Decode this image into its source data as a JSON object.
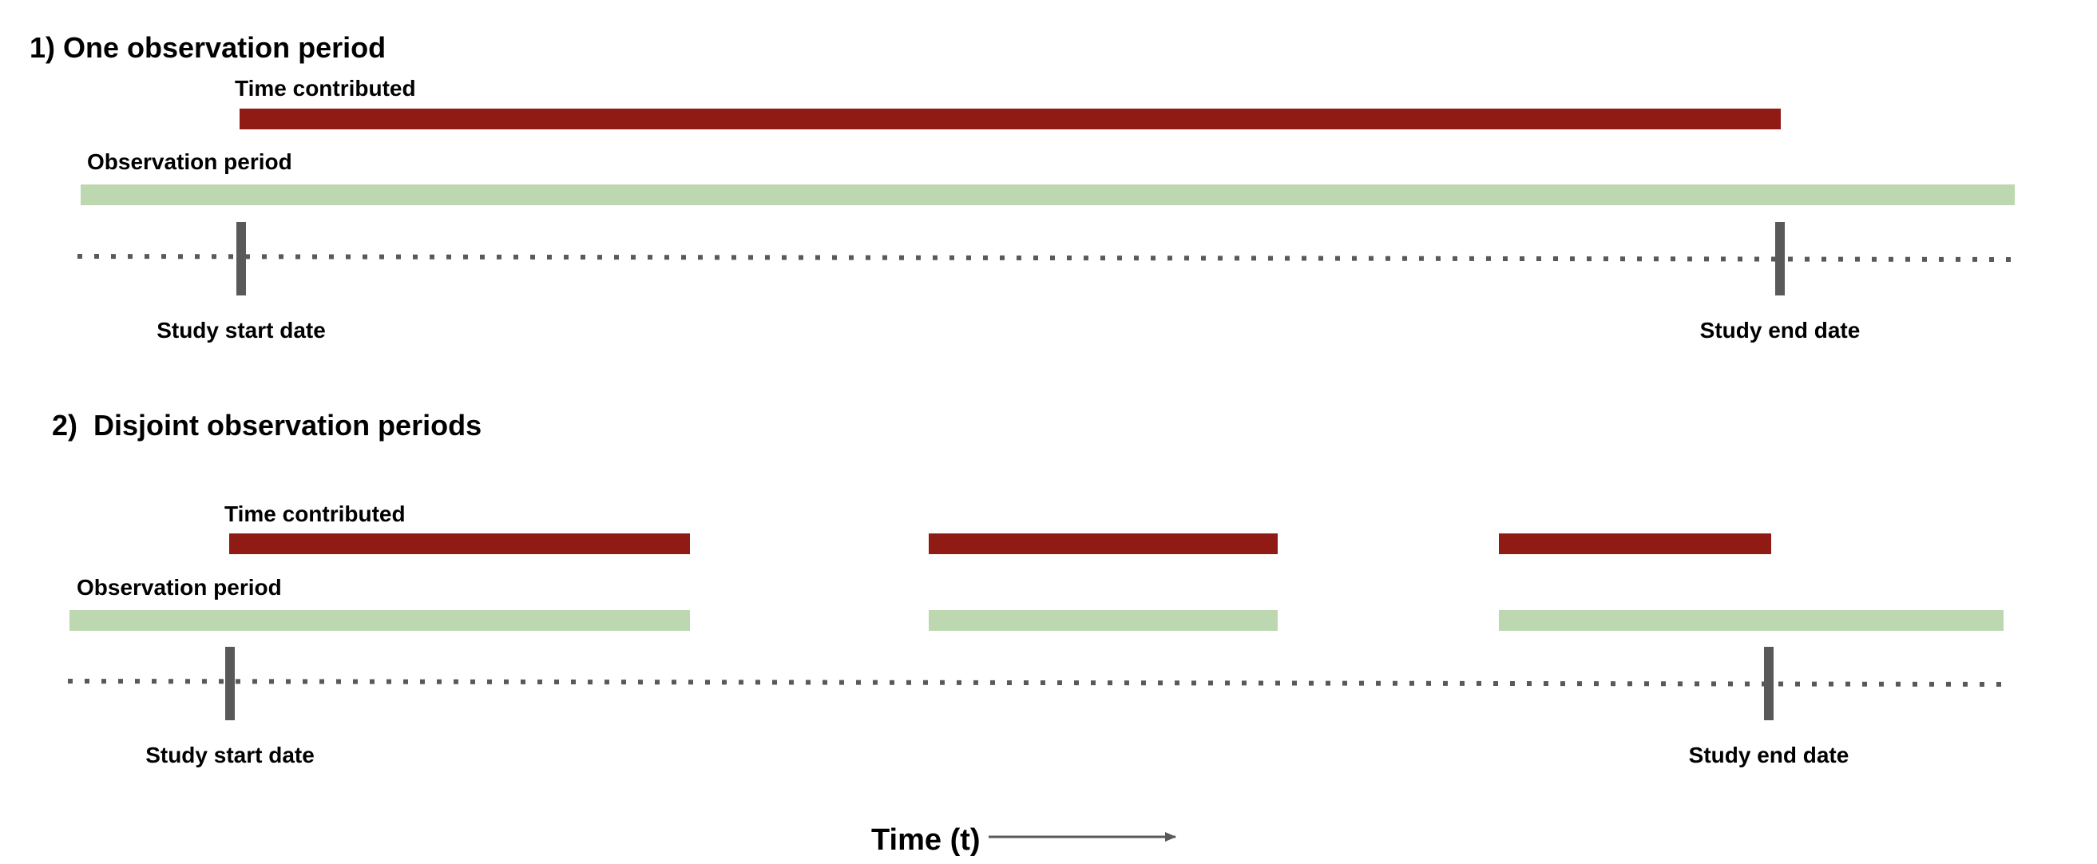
{
  "colors": {
    "time_contributed": "#8f1b14",
    "observation_period": "#bdd8b0",
    "timeline": "#595959",
    "text": "#000000"
  },
  "panels": [
    {
      "title": "1) One observation period",
      "time_contributed_label": "Time contributed",
      "observation_period_label": "Observation period",
      "study_start_label": "Study start date",
      "study_end_label": "Study end date",
      "observation_period_segments": 1,
      "time_contributed_segments": 1
    },
    {
      "title": "2)  Disjoint observation periods",
      "time_contributed_label": "Time contributed",
      "observation_period_label": "Observation period",
      "study_start_label": "Study start date",
      "study_end_label": "Study end date",
      "observation_period_segments": 3,
      "time_contributed_segments": 3
    }
  ],
  "axis": {
    "label": "Time (t)",
    "direction": "arrow-right"
  }
}
